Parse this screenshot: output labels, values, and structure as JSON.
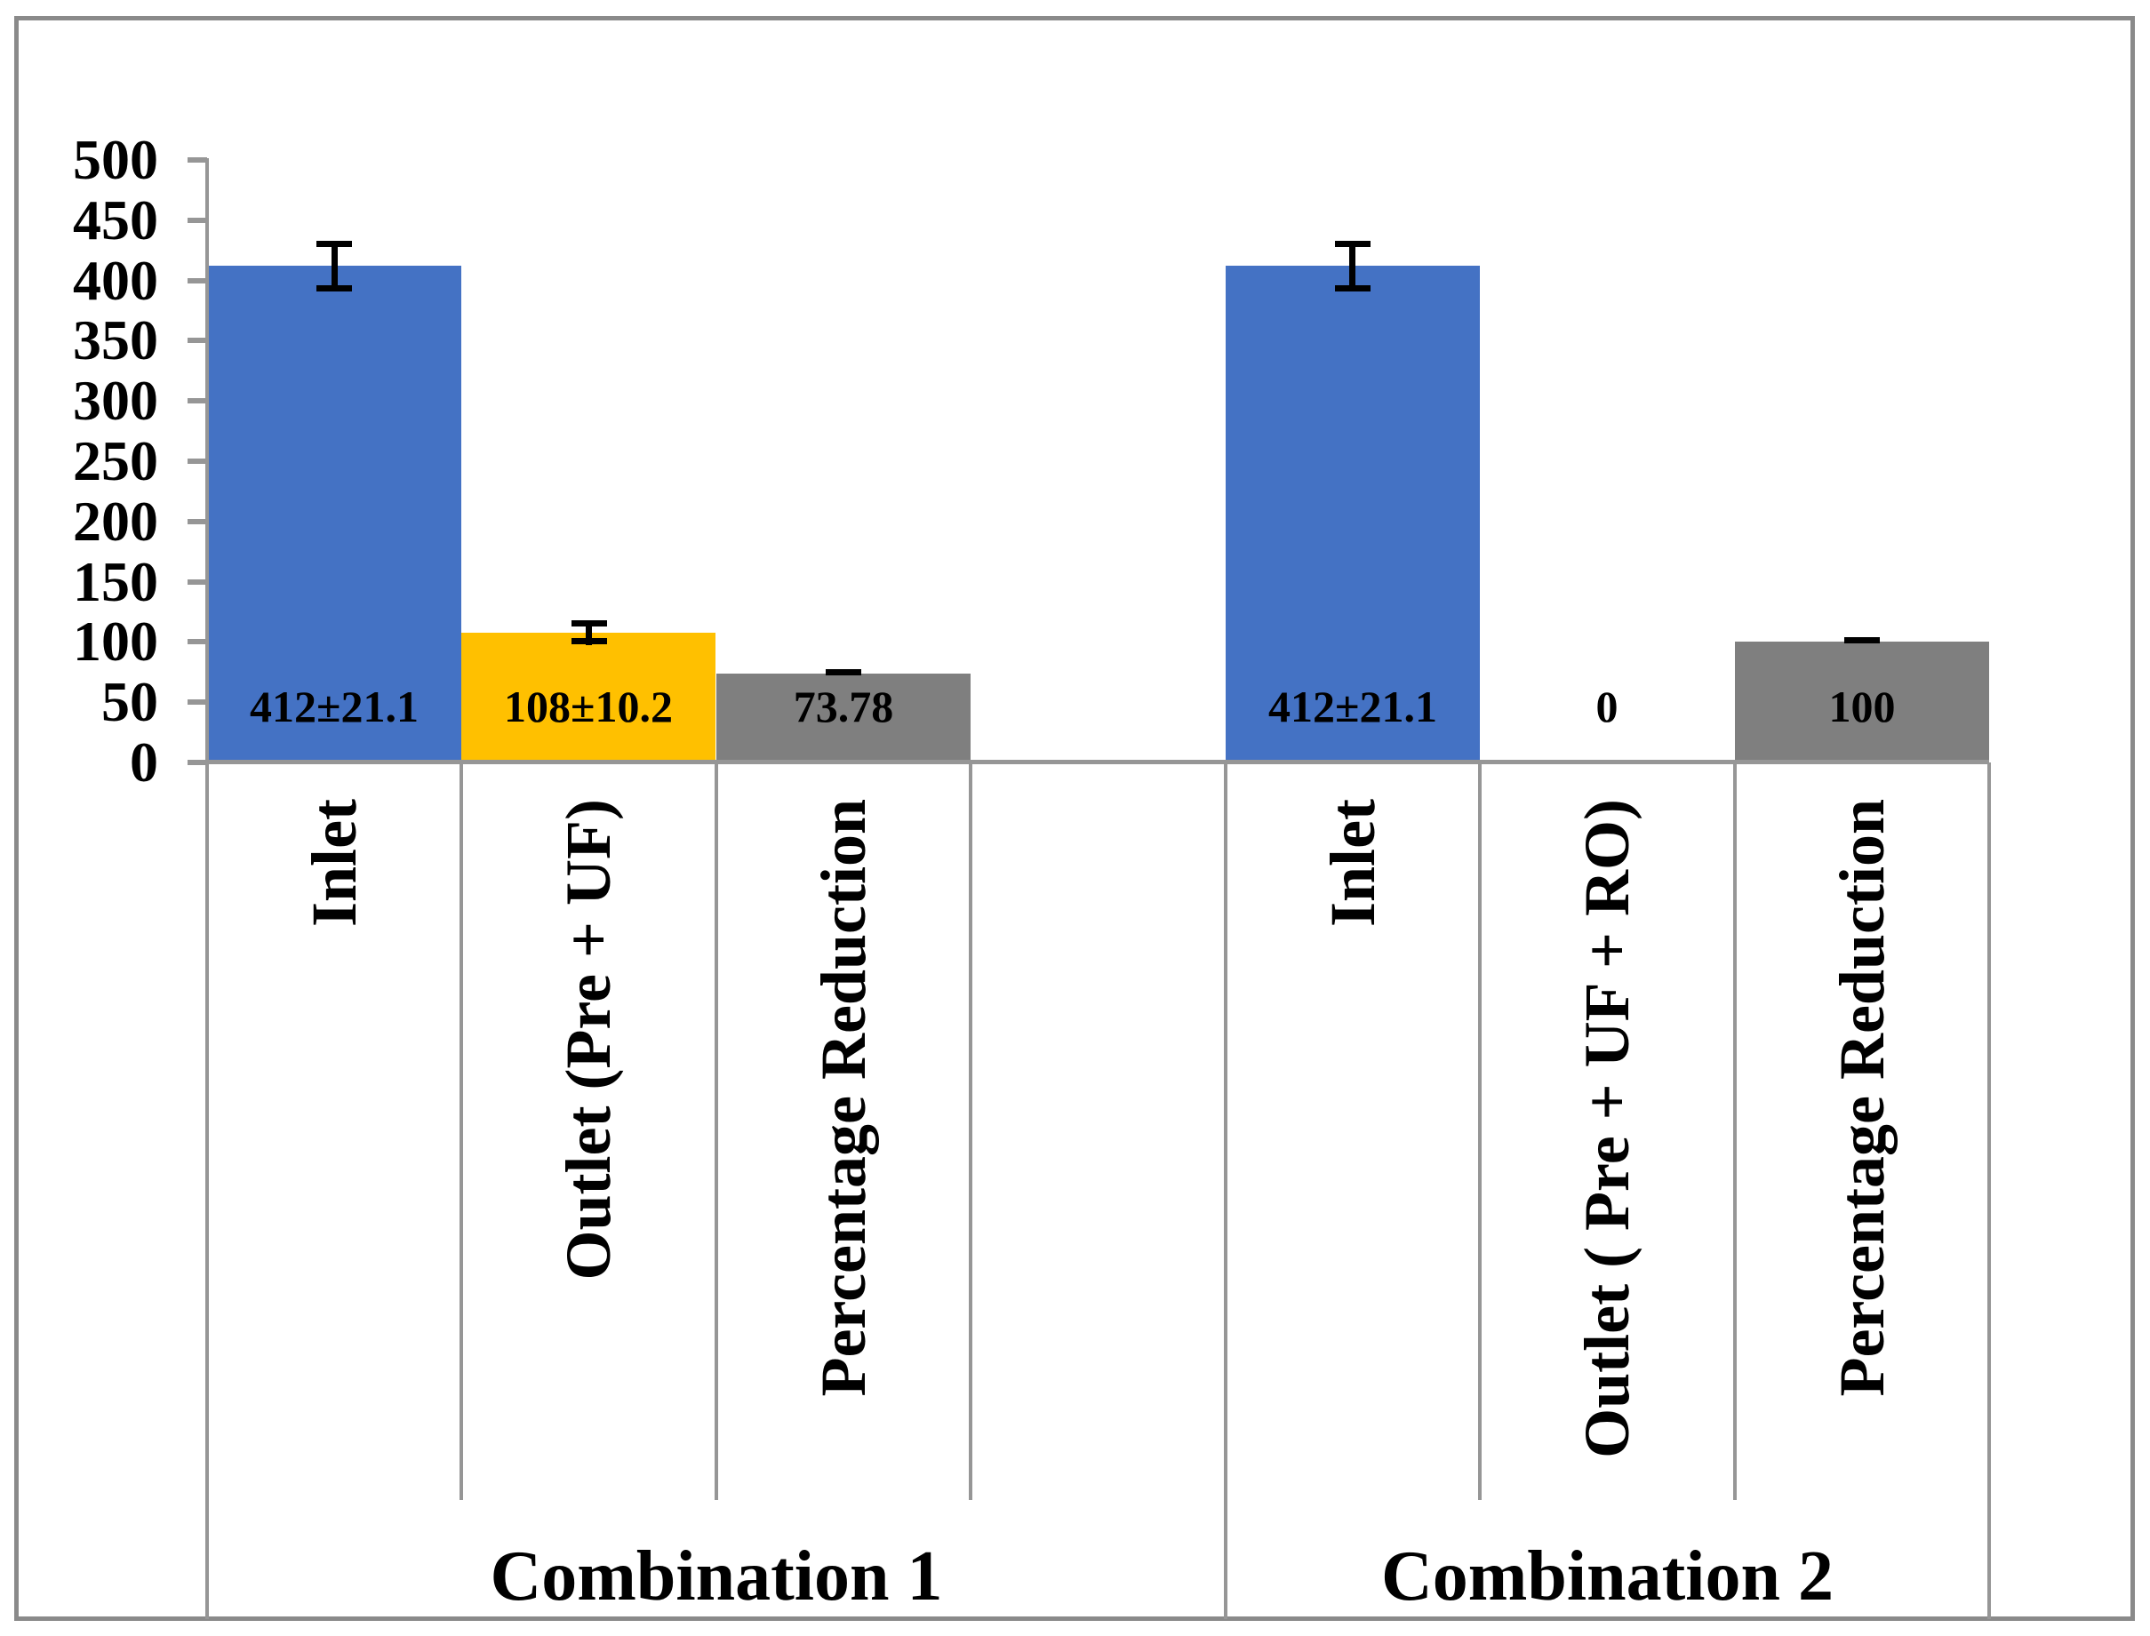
{
  "chart_data": {
    "type": "bar",
    "title": "",
    "grid": "off",
    "legend": "none",
    "y_axis": {
      "min": 0,
      "max": 500,
      "step": 50,
      "tick_labels": [
        "0",
        "50",
        "100",
        "150",
        "200",
        "250",
        "300",
        "350",
        "400",
        "450",
        "500"
      ]
    },
    "groups": [
      {
        "label": "Combination 1"
      },
      {
        "label": "Combination 2"
      }
    ],
    "bars": [
      {
        "group": "Combination 1",
        "category": "Inlet",
        "value": 412,
        "error": 21.1,
        "data_label": "412±21.1",
        "color": "#4472C4"
      },
      {
        "group": "Combination 1",
        "category": "Outlet (Pre + UF)",
        "value": 108,
        "error": 10.2,
        "data_label": "108±10.2",
        "color": "#FFC000"
      },
      {
        "group": "Combination 1",
        "category": "Percentage Reduction",
        "value": 73.78,
        "error": 0,
        "data_label": "73.78",
        "color": "#7F7F7F"
      },
      {
        "group": "Combination 2",
        "category": "Inlet",
        "value": 412,
        "error": 21.1,
        "data_label": "412±21.1",
        "color": "#4472C4"
      },
      {
        "group": "Combination 2",
        "category": "Outlet ( Pre + UF + RO)",
        "value": 0,
        "error": null,
        "data_label": "0",
        "color": null
      },
      {
        "group": "Combination 2",
        "category": "Percentage Reduction",
        "value": 100,
        "error": 0,
        "data_label": "100",
        "color": "#7F7F7F"
      }
    ],
    "colors": {
      "inlet_bar": "#4472C4",
      "outlet_bar": "#FFC000",
      "percentage_bar": "#7F7F7F",
      "axis": "#969696",
      "frame_border": "#8A8A8A",
      "error_bar": "#000000"
    }
  }
}
